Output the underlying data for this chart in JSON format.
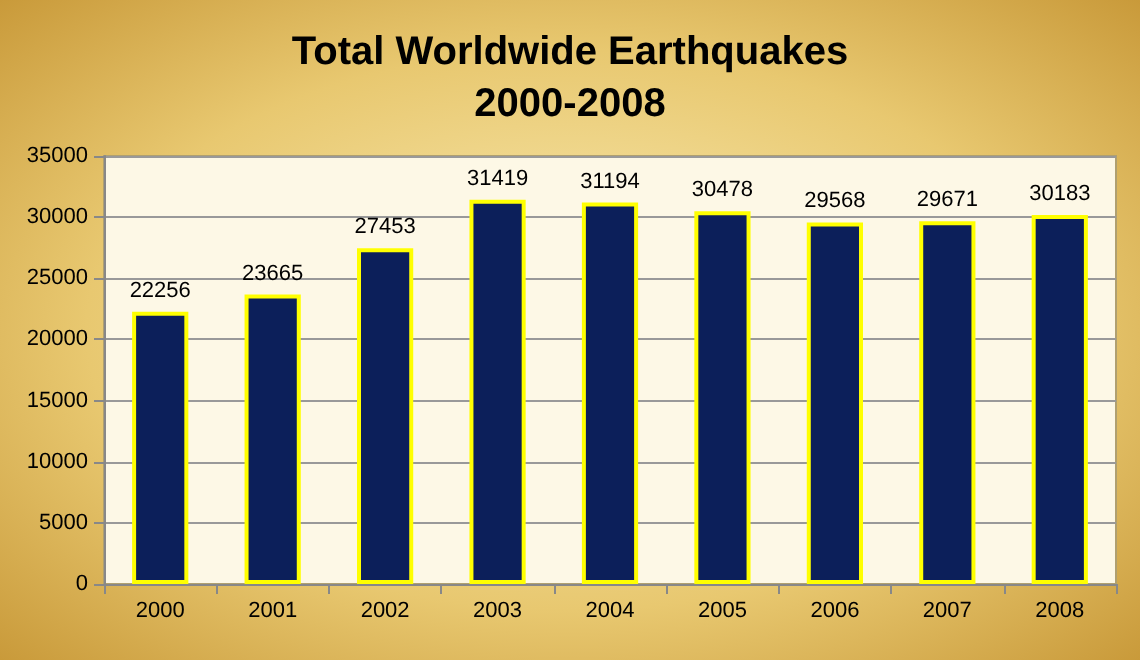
{
  "chart_data": {
    "type": "bar",
    "title": "Total Worldwide Earthquakes\n2000-2008",
    "categories": [
      "2000",
      "2001",
      "2002",
      "2003",
      "2004",
      "2005",
      "2006",
      "2007",
      "2008"
    ],
    "values": [
      22256,
      23665,
      27453,
      31419,
      31194,
      30478,
      29568,
      29671,
      30183
    ],
    "color": "#0c1f5a",
    "ylim": [
      0,
      35000
    ],
    "yticks": [
      0,
      5000,
      10000,
      15000,
      20000,
      25000,
      30000,
      35000
    ],
    "grid": "y",
    "data_labels": true
  }
}
